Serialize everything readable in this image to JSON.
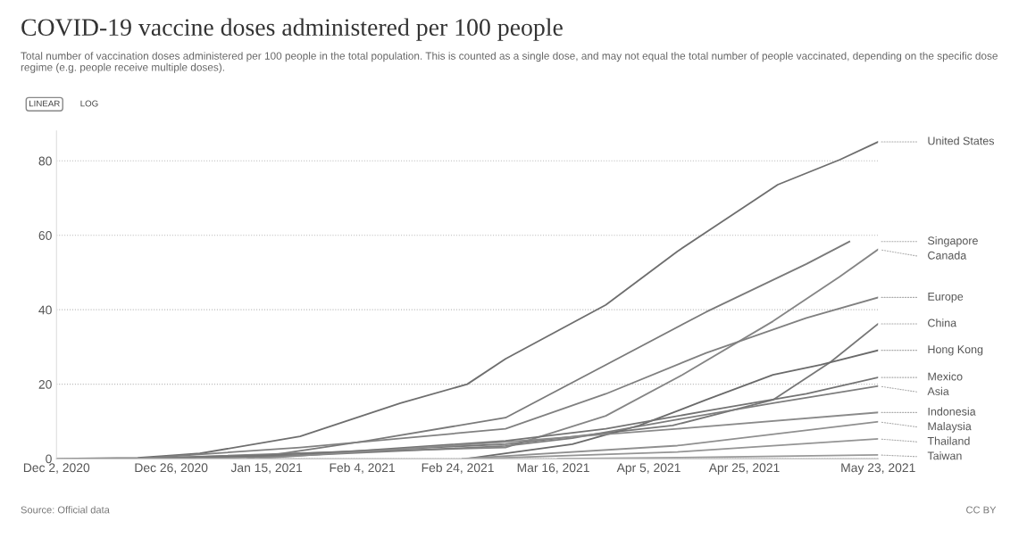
{
  "chart_data": {
    "type": "line",
    "title": "COVID-19 vaccine doses administered per 100 people",
    "subtitle": "Total number of vaccination doses administered per 100 people in the total population. This is counted as a single dose, and may not equal the total number of people vaccinated, depending on the specific dose regime (e.g. people receive multiple doses).",
    "annotations": [
      "LINEAR",
      "LOG",
      "Source: Official data",
      "CC BY"
    ],
    "xlim": [
      "2020-12-02",
      "2021-05-23"
    ],
    "xticks": [
      {
        "value": "2020-12-02",
        "label": "Dec 2, 2020"
      },
      {
        "value": "2020-12-26",
        "label": "Dec 26, 2020"
      },
      {
        "value": "2021-01-15",
        "label": "Jan 15, 2021"
      },
      {
        "value": "2021-02-04",
        "label": "Feb 4, 2021"
      },
      {
        "value": "2021-02-24",
        "label": "Feb 24, 2021"
      },
      {
        "value": "2021-03-16",
        "label": "Mar 16, 2021"
      },
      {
        "value": "2021-04-05",
        "label": "Apr 5, 2021"
      },
      {
        "value": "2021-04-25",
        "label": "Apr 25, 2021"
      },
      {
        "value": "2021-05-23",
        "label": "May 23, 2021"
      }
    ],
    "ylim": [
      0,
      88
    ],
    "yticks": [
      0,
      20,
      40,
      60,
      80
    ],
    "grid": "y",
    "legend": false,
    "marker": "none",
    "line_style": "solid",
    "series": [
      {
        "name": "United States",
        "color": "#6e6e6e",
        "x": [
          "2020-12-02",
          "2020-12-19",
          "2021-01-01",
          "2021-01-22",
          "2021-02-12",
          "2021-02-26",
          "2021-03-06",
          "2021-03-27",
          "2021-04-11",
          "2021-04-28",
          "2021-05-02",
          "2021-05-15",
          "2021-05-23"
        ],
        "values": [
          0,
          0.2,
          1.4,
          6.0,
          14.9,
          20.0,
          26.8,
          41.3,
          55.7,
          70.2,
          73.6,
          80.3,
          85.1
        ]
      },
      {
        "name": "Singapore",
        "color": "#7a7a7a",
        "x": [
          "2021-01-11",
          "2021-02-05",
          "2021-03-06",
          "2021-03-27",
          "2021-04-17",
          "2021-05-08",
          "2021-05-17"
        ],
        "values": [
          0,
          4.8,
          11.0,
          25.2,
          39.4,
          52.3,
          58.3
        ]
      },
      {
        "name": "Canada",
        "color": "#858585",
        "x": [
          "2020-12-19",
          "2021-01-22",
          "2021-03-06",
          "2021-03-27",
          "2021-04-12",
          "2021-05-01",
          "2021-05-15",
          "2021-05-23"
        ],
        "values": [
          0,
          1.5,
          3.0,
          11.5,
          22.5,
          36.9,
          48.9,
          56.2
        ]
      },
      {
        "name": "Europe",
        "color": "#808080",
        "x": [
          "2020-12-19",
          "2021-01-22",
          "2021-03-06",
          "2021-03-27",
          "2021-04-17",
          "2021-05-08",
          "2021-05-23"
        ],
        "values": [
          0,
          3.0,
          8.0,
          17.4,
          28.4,
          37.8,
          43.3
        ]
      },
      {
        "name": "China",
        "color": "#777777",
        "x": [
          "2020-12-19",
          "2021-01-16",
          "2021-03-06",
          "2021-04-10",
          "2021-05-01",
          "2021-05-13",
          "2021-05-23"
        ],
        "values": [
          0,
          1.0,
          3.9,
          8.9,
          15.8,
          25.9,
          36.2
        ]
      },
      {
        "name": "Hong Kong",
        "color": "#6a6a6a",
        "x": [
          "2021-02-26",
          "2021-03-20",
          "2021-04-03",
          "2021-04-17",
          "2021-05-01",
          "2021-05-11",
          "2021-05-23"
        ],
        "values": [
          0,
          3.9,
          8.9,
          15.8,
          22.5,
          25.2,
          29.1
        ]
      },
      {
        "name": "Mexico",
        "color": "#737373",
        "x": [
          "2020-12-24",
          "2021-01-22",
          "2021-03-06",
          "2021-03-27",
          "2021-04-17",
          "2021-05-08",
          "2021-05-23"
        ],
        "values": [
          0,
          1.0,
          4.8,
          8.0,
          12.8,
          17.4,
          21.8
        ]
      },
      {
        "name": "Asia",
        "color": "#7d7d7d",
        "x": [
          "2021-01-01",
          "2021-01-16",
          "2021-03-06",
          "2021-03-20",
          "2021-04-10",
          "2021-05-01",
          "2021-05-23"
        ],
        "values": [
          0,
          0.5,
          3.4,
          5.5,
          10.3,
          14.9,
          19.5
        ]
      },
      {
        "name": "Indonesia",
        "color": "#8a8a8a",
        "x": [
          "2021-01-13",
          "2021-03-06",
          "2021-04-11",
          "2021-05-23"
        ],
        "values": [
          0,
          4.5,
          8.0,
          12.4
        ]
      },
      {
        "name": "Malaysia",
        "color": "#8f8f8f",
        "x": [
          "2021-02-25",
          "2021-04-11",
          "2021-05-23"
        ],
        "values": [
          0,
          3.5,
          9.9
        ]
      },
      {
        "name": "Thailand",
        "color": "#949494",
        "x": [
          "2021-02-28",
          "2021-04-11",
          "2021-05-23"
        ],
        "values": [
          0,
          1.8,
          5.3
        ]
      },
      {
        "name": "Taiwan",
        "color": "#999999",
        "x": [
          "2021-03-17",
          "2021-04-11",
          "2021-05-23"
        ],
        "values": [
          0,
          0.3,
          1.0
        ]
      }
    ]
  }
}
